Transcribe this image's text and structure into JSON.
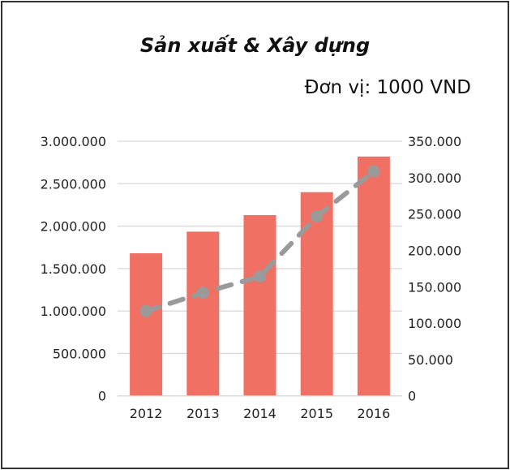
{
  "chart_data": {
    "type": "bar+line",
    "title": "Sản xuất & Xây dựng",
    "subtitle": "Đơn vị: 1000 VND",
    "categories": [
      "2012",
      "2013",
      "2014",
      "2015",
      "2016"
    ],
    "series": [
      {
        "type": "bar",
        "axis": "left",
        "color": "#f07063",
        "values": [
          1680000,
          1935000,
          2130000,
          2400000,
          2820000
        ]
      },
      {
        "type": "line",
        "style": "dashed",
        "marker": "circle",
        "axis": "right",
        "color": "#9a9a9a",
        "values": [
          116500,
          141700,
          164000,
          246600,
          308500
        ]
      }
    ],
    "y_left": {
      "range": [
        0,
        3000000
      ],
      "ticks": [
        "0",
        "500.000",
        "1.000.000",
        "1.500.000",
        "2.000.000",
        "2.500.000",
        "3.000.000"
      ]
    },
    "y_right": {
      "range": [
        0,
        350000
      ],
      "ticks": [
        "0",
        "50.000",
        "100.000",
        "150.000",
        "200.000",
        "250.000",
        "300.000",
        "350.000"
      ]
    },
    "grid": true,
    "gridline_color": "#d9d9d9"
  }
}
